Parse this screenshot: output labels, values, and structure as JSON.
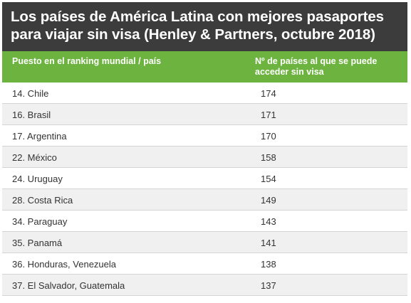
{
  "title": "Los países de América Latina con mejores pasaportes para viajar sin visa (Henley & Partners, octubre 2018)",
  "colors": {
    "title_background": "#3c3c3c",
    "header_background": "#6db33f",
    "alt_row_background": "#f0f0f0",
    "text": "#333333"
  },
  "chart_data": {
    "type": "table",
    "title": "Los países de América Latina con mejores pasaportes para viajar sin visa (Henley & Partners, octubre 2018)",
    "columns": [
      "Puesto en el ranking mundial / país",
      "Nº de países al que se puede acceder sin visa"
    ],
    "rows": [
      {
        "country": "14. Chile",
        "value": "174"
      },
      {
        "country": "16. Brasil",
        "value": "171"
      },
      {
        "country": "17. Argentina",
        "value": "170"
      },
      {
        "country": "22. México",
        "value": "158"
      },
      {
        "country": "24. Uruguay",
        "value": "154"
      },
      {
        "country": "28. Costa Rica",
        "value": "149"
      },
      {
        "country": "34. Paraguay",
        "value": "143"
      },
      {
        "country": "35. Panamá",
        "value": "141"
      },
      {
        "country": "36. Honduras, Venezuela",
        "value": "138"
      },
      {
        "country": "37. El Salvador, Guatemala",
        "value": "137"
      }
    ]
  }
}
